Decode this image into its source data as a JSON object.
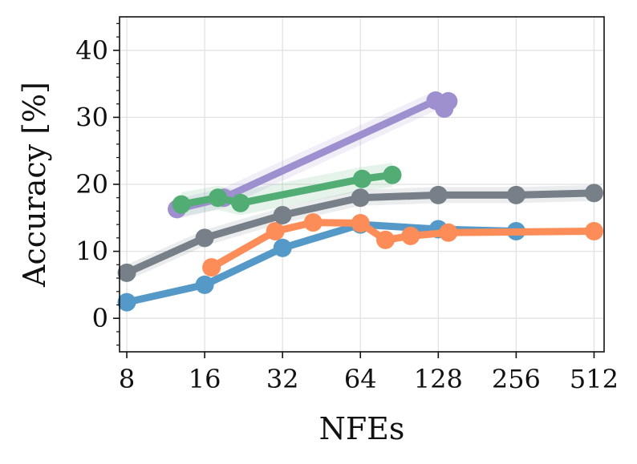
{
  "chart_data": {
    "type": "line",
    "title": "",
    "xlabel": "NFEs",
    "ylabel": "Accuracy [%]",
    "x_scale": "log2",
    "x_ticks": [
      8,
      16,
      32,
      64,
      128,
      256,
      512
    ],
    "x_tick_labels": [
      "8",
      "16",
      "32",
      "64",
      "128",
      "256",
      "512"
    ],
    "xlim": [
      7.5,
      560
    ],
    "y_ticks": [
      0,
      10,
      20,
      30,
      40
    ],
    "y_tick_labels": [
      "0",
      "10",
      "20",
      "30",
      "40"
    ],
    "ylim": [
      -5,
      45
    ],
    "grid": true,
    "legend": "none",
    "series": [
      {
        "color": "#5499c7",
        "x": [
          8,
          16,
          32,
          64,
          128,
          256
        ],
        "y": [
          2.4,
          5.0,
          10.5,
          14.0,
          13.3,
          13.0
        ],
        "band": 0.3
      },
      {
        "color": "#fc8d59",
        "x": [
          17,
          30,
          42,
          64,
          80,
          100,
          140,
          512
        ],
        "y": [
          7.6,
          13.0,
          14.3,
          14.2,
          11.7,
          12.3,
          12.8,
          13.0
        ],
        "band": 0.3
      },
      {
        "color": "#778089",
        "x": [
          8,
          16,
          32,
          64,
          128,
          256,
          512
        ],
        "y": [
          6.8,
          12.0,
          15.4,
          18.0,
          18.4,
          18.4,
          18.7
        ],
        "band": 1.2
      },
      {
        "color": "#9e8fce",
        "x": [
          12.5,
          19,
          125,
          135,
          140
        ],
        "y": [
          16.3,
          18.0,
          32.5,
          31.3,
          32.4
        ],
        "band": 1.5
      },
      {
        "color": "#52ad74",
        "x": [
          13,
          18,
          22,
          65,
          85
        ],
        "y": [
          17.0,
          18.0,
          17.2,
          20.8,
          21.4
        ],
        "band": 1.8
      }
    ]
  }
}
